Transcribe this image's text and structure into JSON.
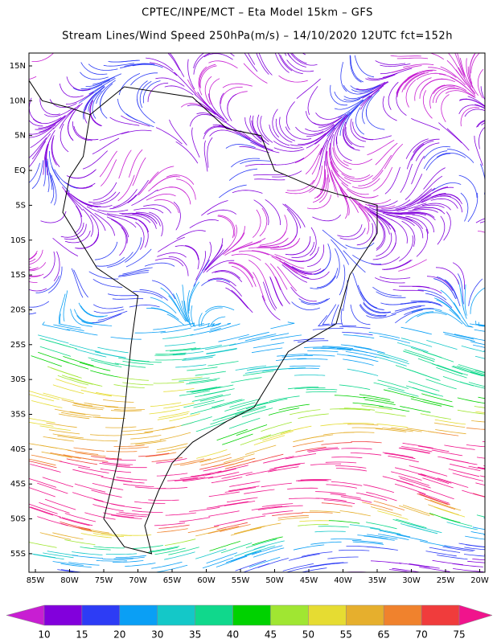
{
  "header": {
    "title": "CPTEC/INPE/MCT –  Eta Model 15km – GFS",
    "subtitle": "Stream Lines/Wind Speed 250hPa(m/s) – 14/10/2020 12UTC fct=152h"
  },
  "map": {
    "lat_labels": [
      "15N",
      "10N",
      "5N",
      "EQ",
      "5S",
      "10S",
      "15S",
      "20S",
      "25S",
      "30S",
      "35S",
      "40S",
      "45S",
      "50S",
      "55S"
    ],
    "lon_labels": [
      "85W",
      "80W",
      "75W",
      "70W",
      "65W",
      "60W",
      "55W",
      "50W",
      "45W",
      "40W",
      "35W",
      "30W",
      "25W",
      "20W"
    ]
  },
  "colorbar": {
    "ticks": [
      10,
      15,
      20,
      30,
      35,
      40,
      45,
      50,
      55,
      65,
      70,
      75
    ],
    "colors": [
      "#c81ed2",
      "#8200dc",
      "#2d3cf5",
      "#0a9ff5",
      "#14c8c8",
      "#10d88c",
      "#00d200",
      "#a0e632",
      "#e6dc32",
      "#e6af2d",
      "#f0822d",
      "#f03c3c",
      "#f0148c"
    ]
  }
}
